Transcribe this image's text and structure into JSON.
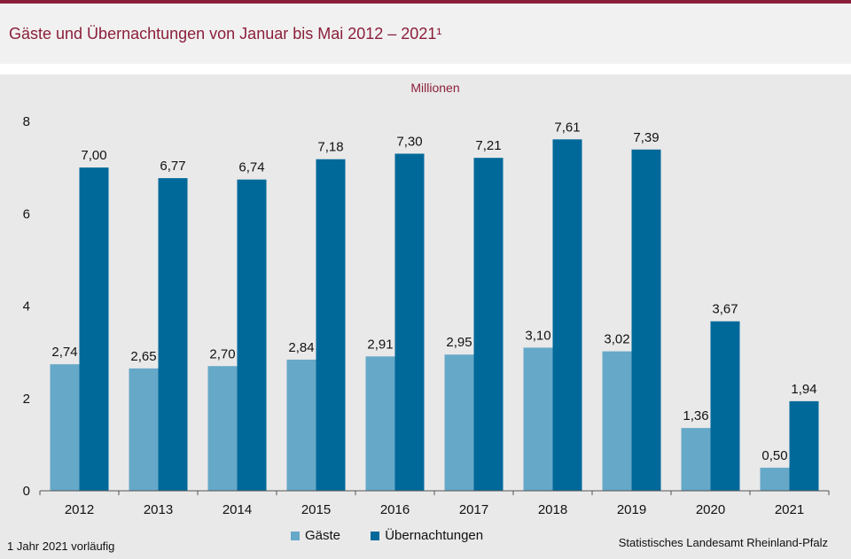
{
  "header": {
    "title": "Gäste und Übernachtungen von Januar bis Mai 2012 – 2021¹"
  },
  "footnote": "1 Jahr 2021 vorläufig",
  "source": "Statistisches Landesamt Rheinland-Pfalz",
  "colors": {
    "accent": "#8b1f3b",
    "gaeste": "#66a8c8",
    "uebernachtungen": "#00699a"
  },
  "chart_data": {
    "type": "bar",
    "unit_label": "Millionen",
    "categories": [
      "2012",
      "2013",
      "2014",
      "2015",
      "2016",
      "2017",
      "2018",
      "2019",
      "2020",
      "2021"
    ],
    "series": [
      {
        "name": "Gäste",
        "values": [
          2.74,
          2.65,
          2.7,
          2.84,
          2.91,
          2.95,
          3.1,
          3.02,
          1.36,
          0.5
        ],
        "labels": [
          "2,74",
          "2,65",
          "2,70",
          "2,84",
          "2,91",
          "2,95",
          "3,10",
          "3,02",
          "1,36",
          "0,50"
        ]
      },
      {
        "name": "Übernachtungen",
        "values": [
          7.0,
          6.77,
          6.74,
          7.18,
          7.3,
          7.21,
          7.61,
          7.39,
          3.67,
          1.94
        ],
        "labels": [
          "7,00",
          "6,77",
          "6,74",
          "7,18",
          "7,30",
          "7,21",
          "7,61",
          "7,39",
          "3,67",
          "1,94"
        ]
      }
    ],
    "yticks": [
      "0",
      "2",
      "4",
      "6",
      "8"
    ],
    "ylim": [
      0,
      8
    ],
    "grid": false,
    "legend_position": "bottom"
  }
}
